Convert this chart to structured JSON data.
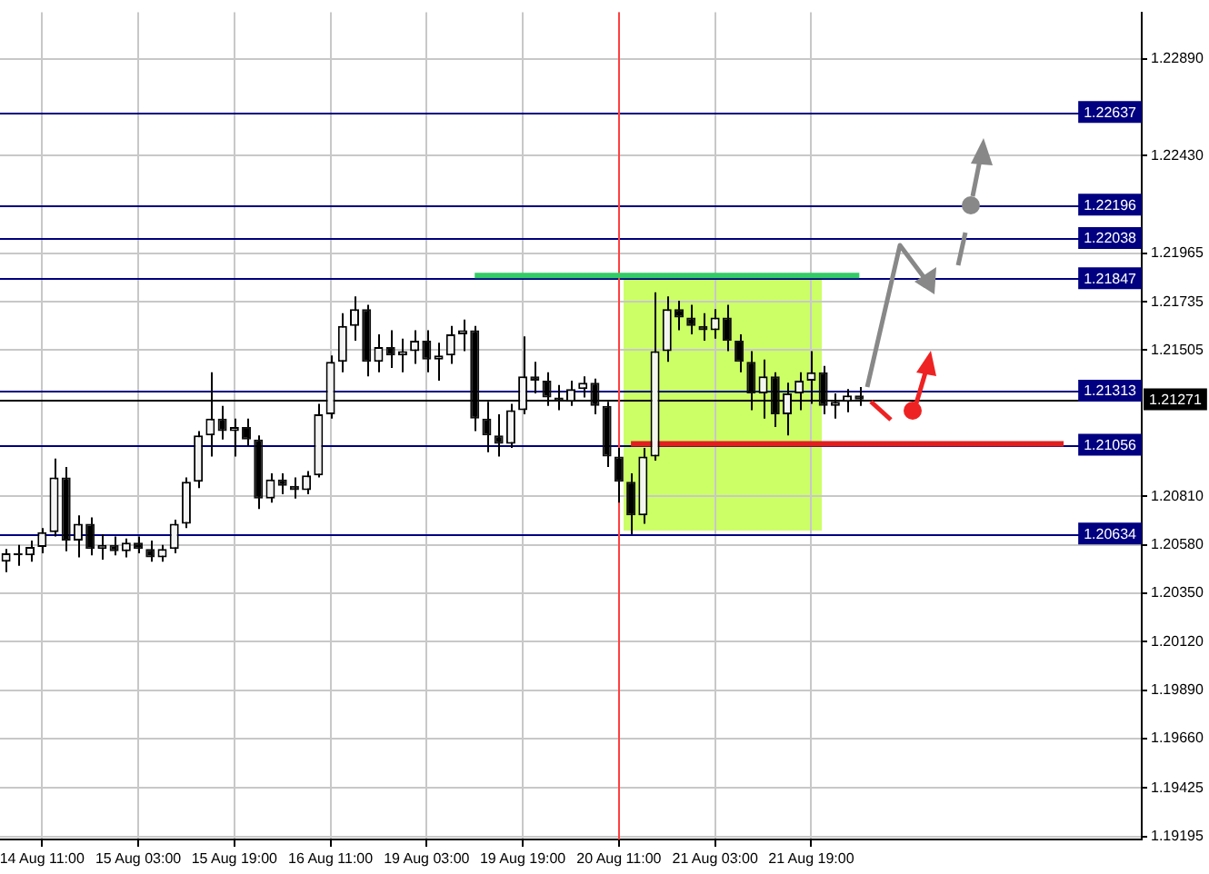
{
  "chart_data": {
    "type": "candlestick",
    "categories": [
      null,
      null,
      null,
      "14 Aug 11:00",
      null,
      null,
      null,
      null,
      null,
      null,
      null,
      "15 Aug 03:00",
      null,
      null,
      null,
      null,
      null,
      null,
      null,
      "15 Aug 19:00",
      null,
      null,
      null,
      null,
      null,
      null,
      null,
      "16 Aug 11:00",
      null,
      null,
      null,
      null,
      null,
      null,
      null,
      "19 Aug 03:00",
      null,
      null,
      null,
      null,
      null,
      null,
      null,
      "19 Aug 19:00",
      null,
      null,
      null,
      null,
      null,
      null,
      null,
      "20 Aug 11:00",
      null,
      null,
      null,
      null,
      null,
      null,
      null,
      "21 Aug 03:00",
      null,
      null,
      null,
      null,
      null,
      null,
      null,
      "21 Aug 19:00",
      null,
      null,
      null,
      null,
      null,
      null,
      null,
      null,
      null,
      null,
      null,
      null,
      null,
      null,
      null,
      null,
      null,
      null,
      null,
      null,
      null,
      null,
      null,
      null,
      null,
      null,
      null
    ],
    "ohlc": [
      [
        1.205,
        1.2056,
        1.2045,
        1.2054
      ],
      [
        1.2054,
        1.2058,
        1.2048,
        1.2053
      ],
      [
        1.2053,
        1.206,
        1.205,
        1.2057
      ],
      [
        1.2057,
        1.2066,
        1.2054,
        1.2064
      ],
      [
        1.2064,
        1.2099,
        1.2062,
        1.209
      ],
      [
        1.209,
        1.2095,
        1.2055,
        1.206
      ],
      [
        1.206,
        1.2072,
        1.2052,
        1.2068
      ],
      [
        1.2068,
        1.2071,
        1.2053,
        1.2056
      ],
      [
        1.2056,
        1.2063,
        1.2051,
        1.2058
      ],
      [
        1.2058,
        1.2062,
        1.2053,
        1.2055
      ],
      [
        1.2055,
        1.2061,
        1.2052,
        1.2059
      ],
      [
        1.2059,
        1.2062,
        1.2054,
        1.2056
      ],
      [
        1.2056,
        1.206,
        1.205,
        1.2052
      ],
      [
        1.2052,
        1.2058,
        1.205,
        1.2056
      ],
      [
        1.2056,
        1.207,
        1.2054,
        1.2068
      ],
      [
        1.2068,
        1.209,
        1.2066,
        1.2088
      ],
      [
        1.2088,
        1.2112,
        1.2085,
        1.211
      ],
      [
        1.211,
        1.214,
        1.21,
        1.2118
      ],
      [
        1.2118,
        1.2124,
        1.2108,
        1.2112
      ],
      [
        1.2112,
        1.2118,
        1.21,
        1.2114
      ],
      [
        1.2114,
        1.2118,
        1.2105,
        1.2108
      ],
      [
        1.2108,
        1.211,
        1.2075,
        1.208
      ],
      [
        1.208,
        1.2092,
        1.2078,
        1.2089
      ],
      [
        1.2089,
        1.2092,
        1.2082,
        1.2086
      ],
      [
        1.2086,
        1.209,
        1.208,
        1.2084
      ],
      [
        1.2084,
        1.2093,
        1.2082,
        1.2091
      ],
      [
        1.2091,
        1.2125,
        1.209,
        1.212
      ],
      [
        1.212,
        1.2148,
        1.2118,
        1.2145
      ],
      [
        1.2145,
        1.2168,
        1.214,
        1.2162
      ],
      [
        1.2162,
        1.2176,
        1.2155,
        1.217
      ],
      [
        1.217,
        1.2172,
        1.2138,
        1.2145
      ],
      [
        1.2145,
        1.2158,
        1.214,
        1.2152
      ],
      [
        1.2152,
        1.216,
        1.2142,
        1.2148
      ],
      [
        1.2148,
        1.2156,
        1.214,
        1.215
      ],
      [
        1.215,
        1.216,
        1.2144,
        1.2155
      ],
      [
        1.2155,
        1.216,
        1.214,
        1.2146
      ],
      [
        1.2146,
        1.2154,
        1.2136,
        1.2148
      ],
      [
        1.2148,
        1.2162,
        1.2144,
        1.2158
      ],
      [
        1.2158,
        1.2165,
        1.215,
        1.216
      ],
      [
        1.216,
        1.2162,
        1.2112,
        1.2118
      ],
      [
        1.2118,
        1.2126,
        1.2102,
        1.211
      ],
      [
        1.211,
        1.212,
        1.21,
        1.2106
      ],
      [
        1.2106,
        1.2125,
        1.2104,
        1.2122
      ],
      [
        1.2122,
        1.2157,
        1.212,
        1.2138
      ],
      [
        1.2138,
        1.2145,
        1.213,
        1.2136
      ],
      [
        1.2136,
        1.214,
        1.2124,
        1.2128
      ],
      [
        1.2128,
        1.2134,
        1.2122,
        1.2126
      ],
      [
        1.2126,
        1.2136,
        1.2124,
        1.2132
      ],
      [
        1.2132,
        1.2138,
        1.2128,
        1.2135
      ],
      [
        1.2135,
        1.2137,
        1.212,
        1.2124
      ],
      [
        1.2124,
        1.2126,
        1.2095,
        1.21
      ],
      [
        1.21,
        1.2104,
        1.2078,
        1.2088
      ],
      [
        1.2088,
        1.2092,
        1.2063,
        1.2072
      ],
      [
        1.2072,
        1.2104,
        1.2068,
        1.21
      ],
      [
        1.21,
        1.2178,
        1.2098,
        1.215
      ],
      [
        1.215,
        1.2176,
        1.2145,
        1.217
      ],
      [
        1.217,
        1.2174,
        1.216,
        1.2166
      ],
      [
        1.2166,
        1.2172,
        1.2158,
        1.2162
      ],
      [
        1.2162,
        1.2168,
        1.2155,
        1.216
      ],
      [
        1.216,
        1.217,
        1.2156,
        1.2166
      ],
      [
        1.2166,
        1.2172,
        1.215,
        1.2155
      ],
      [
        1.2155,
        1.2158,
        1.214,
        1.2145
      ],
      [
        1.2145,
        1.215,
        1.2122,
        1.213
      ],
      [
        1.213,
        1.2146,
        1.2118,
        1.2138
      ],
      [
        1.2138,
        1.214,
        1.2114,
        1.212
      ],
      [
        1.212,
        1.2135,
        1.211,
        1.213
      ],
      [
        1.213,
        1.214,
        1.2122,
        1.2136
      ],
      [
        1.2136,
        1.215,
        1.2125,
        1.214
      ],
      [
        1.214,
        1.2143,
        1.212,
        1.2124
      ],
      [
        1.2124,
        1.213,
        1.2118,
        1.2126
      ],
      [
        1.2126,
        1.2132,
        1.2121,
        1.2129
      ],
      [
        1.2129,
        1.2133,
        1.2124,
        1.2127
      ],
      null,
      null,
      null,
      null,
      null,
      null,
      null,
      null,
      null,
      null,
      null,
      null,
      null,
      null,
      null,
      null,
      null,
      null,
      null,
      null,
      null,
      null,
      null
    ],
    "series": [
      {
        "type": "line",
        "color": "#33cc66",
        "values": [
          null,
          null,
          null,
          null,
          null,
          null,
          null,
          null,
          null,
          null,
          null,
          null,
          null,
          null,
          null,
          null,
          null,
          null,
          null,
          null,
          null,
          null,
          null,
          null,
          null,
          null,
          null,
          null,
          null,
          null,
          null,
          null,
          null,
          null,
          null,
          null,
          null,
          null,
          null,
          1.2186,
          1.2186,
          1.2186,
          1.2186,
          1.2186,
          1.2186,
          1.2186,
          1.2186,
          1.2186,
          1.2186,
          1.2186,
          1.2186,
          1.2186,
          1.2186,
          1.2186,
          1.2186,
          1.2186,
          1.2186,
          1.2186,
          1.2186,
          1.2186,
          1.2186,
          1.2186,
          1.2186,
          1.2186,
          1.2186,
          1.2186,
          1.2186,
          1.2186,
          1.2186,
          1.2186,
          1.2186,
          1.2186,
          null,
          null,
          null,
          null,
          null,
          null,
          null,
          null,
          null,
          null,
          null,
          null,
          null,
          null,
          null,
          null,
          null,
          null,
          null,
          null,
          null,
          null,
          null
        ]
      },
      {
        "type": "line",
        "color": "#e02020",
        "values": [
          null,
          null,
          null,
          null,
          null,
          null,
          null,
          null,
          null,
          null,
          null,
          null,
          null,
          null,
          null,
          null,
          null,
          null,
          null,
          null,
          null,
          null,
          null,
          null,
          null,
          null,
          null,
          null,
          null,
          null,
          null,
          null,
          null,
          null,
          null,
          null,
          null,
          null,
          null,
          null,
          null,
          null,
          null,
          null,
          null,
          null,
          null,
          null,
          null,
          null,
          null,
          null,
          1.2106,
          1.2106,
          1.2106,
          1.2106,
          1.2106,
          1.2106,
          1.2106,
          1.2106,
          1.2106,
          1.2106,
          1.2106,
          1.2106,
          1.2106,
          1.2106,
          1.2106,
          1.2106,
          1.2106,
          1.2106,
          1.2106,
          1.2106,
          1.2106,
          1.2106,
          1.2106,
          1.2106,
          1.2106,
          1.2106,
          1.2106,
          1.2106,
          1.2106,
          1.2106,
          1.2106,
          1.2106,
          1.2106,
          1.2106,
          1.2106,
          1.2106,
          1.2106,
          null,
          null,
          null,
          null,
          null,
          null
        ]
      }
    ],
    "ylim": [
      1.1918,
      1.2311
    ],
    "yticks": [
      {
        "value": 1.2289,
        "label": "1.22890"
      },
      {
        "value": 1.2243,
        "label": "1.22430"
      },
      {
        "value": 1.21965,
        "label": "1.21965"
      },
      {
        "value": 1.21735,
        "label": "1.21735"
      },
      {
        "value": 1.21505,
        "label": "1.21505"
      },
      {
        "value": 1.2081,
        "label": "1.20810"
      },
      {
        "value": 1.2058,
        "label": "1.20580"
      },
      {
        "value": 1.2035,
        "label": "1.20350"
      },
      {
        "value": 1.2012,
        "label": "1.20120"
      },
      {
        "value": 1.1989,
        "label": "1.19890"
      },
      {
        "value": 1.1966,
        "label": "1.19660"
      },
      {
        "value": 1.19425,
        "label": "1.19425"
      },
      {
        "value": 1.19195,
        "label": "1.19195"
      }
    ],
    "ref_lines": [
      {
        "axis": "y",
        "value": 1.22637,
        "label": "1.22637",
        "color": "#000080"
      },
      {
        "axis": "y",
        "value": 1.22196,
        "label": "1.22196",
        "color": "#000080"
      },
      {
        "axis": "y",
        "value": 1.22038,
        "label": "1.22038",
        "color": "#000080"
      },
      {
        "axis": "y",
        "value": 1.21847,
        "label": "1.21847",
        "color": "#000080"
      },
      {
        "axis": "y",
        "value": 1.21313,
        "label": "1.21313",
        "color": "#000080"
      },
      {
        "axis": "y",
        "value": 1.21271,
        "label": "1.21271",
        "color": "#000000"
      },
      {
        "axis": "y",
        "value": 1.21056,
        "label": "1.21056",
        "color": "#000080"
      },
      {
        "axis": "y",
        "value": 1.20634,
        "label": "1.20634",
        "color": "#000080"
      },
      {
        "axis": "x",
        "value": "20 Aug 11:00",
        "label": null,
        "color": "#ff4040"
      }
    ],
    "grid": true,
    "legend": false
  }
}
